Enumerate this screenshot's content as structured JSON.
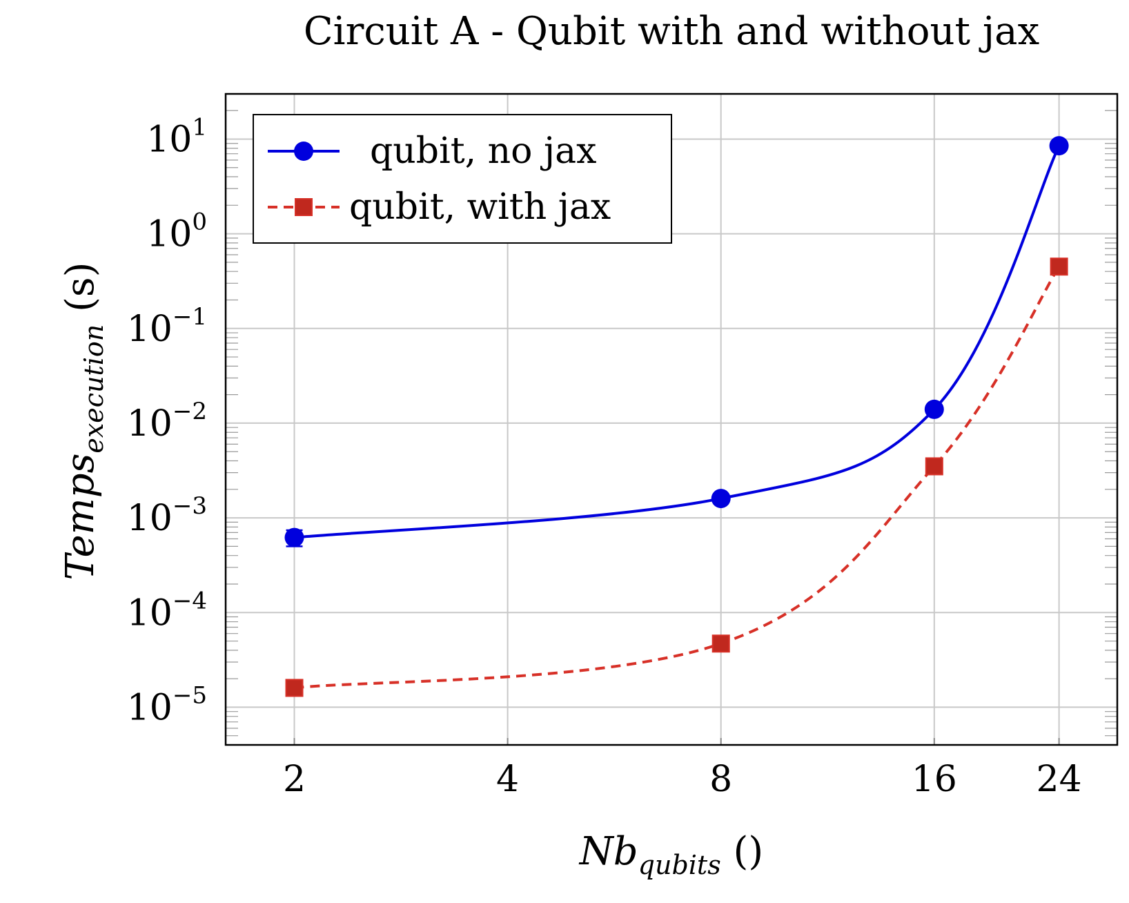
{
  "chart_data": {
    "type": "line",
    "title": "Circuit A - Qubit with and without jax",
    "xlabel": {
      "main": "Nb",
      "sub": "qubits",
      "unit": " ()"
    },
    "ylabel": {
      "main": "Temps",
      "sub": "execution",
      "unit": " (s)"
    },
    "x_scale": "log2",
    "y_scale": "log10",
    "x_ticks": [
      2,
      4,
      8,
      16,
      24
    ],
    "x_tick_labels": [
      "2",
      "4",
      "8",
      "16",
      "24"
    ],
    "y_tick_exponents": [
      -5,
      -4,
      -3,
      -2,
      -1,
      0,
      1
    ],
    "y_tick_labels": [
      "10",
      "10",
      "10",
      "10",
      "10",
      "10",
      "10"
    ],
    "y_tick_exp_labels": [
      "−5",
      "−4",
      "−3",
      "−2",
      "−1",
      "0",
      "1"
    ],
    "xlim": [
      1.6,
      29
    ],
    "ylim": [
      4e-06,
      30
    ],
    "grid": true,
    "legend_position": "top-left",
    "series": [
      {
        "name": "qubit, no jax",
        "color": "#0000dd",
        "marker": "circle",
        "line_style": "solid",
        "x": [
          2,
          8,
          16,
          24
        ],
        "y": [
          0.00062,
          0.0016,
          0.014,
          8.5
        ],
        "y_err": [
          0.00012,
          0,
          0,
          0
        ]
      },
      {
        "name": "qubit, with jax",
        "color": "#d73027",
        "marker": "square",
        "line_style": "dashed",
        "x": [
          2,
          8,
          16,
          24
        ],
        "y": [
          1.6e-05,
          4.7e-05,
          0.0035,
          0.45
        ],
        "y_err": [
          0,
          0,
          0,
          0
        ]
      }
    ]
  }
}
